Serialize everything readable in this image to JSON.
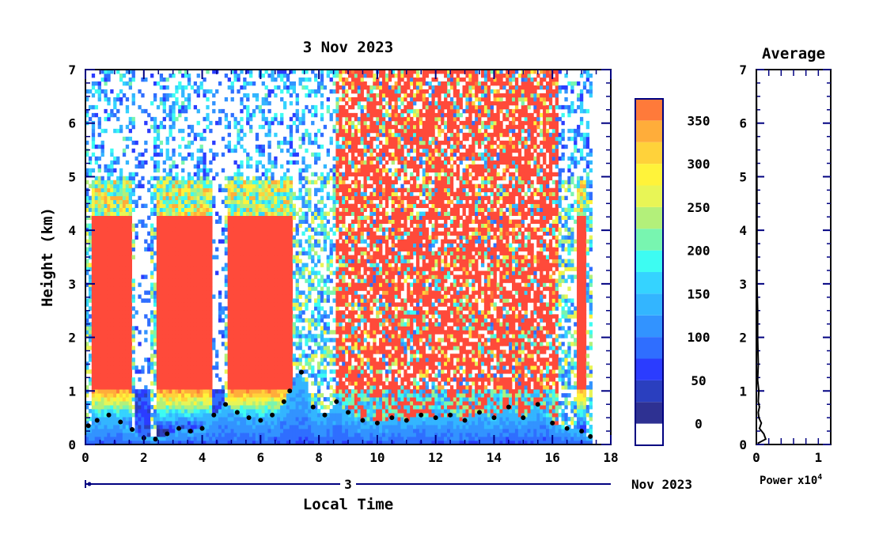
{
  "chart_data": [
    {
      "type": "heatmap",
      "title": "3 Nov 2023",
      "xlabel": "Local Time",
      "ylabel": "Height (km)",
      "xlim": [
        0,
        18
      ],
      "ylim": [
        0,
        7
      ],
      "xticks": [
        "0",
        "2",
        "4",
        "6",
        "8",
        "10",
        "12",
        "14",
        "16",
        "18"
      ],
      "yticks": [
        "0",
        "1",
        "2",
        "3",
        "4",
        "5",
        "6",
        "7"
      ],
      "date_axis": {
        "day": "3",
        "month_year": "Nov 2023"
      },
      "data_extent_hours": [
        0,
        17.35
      ],
      "mixed_layer_height_km": {
        "x": [
          0.1,
          0.4,
          0.8,
          1.2,
          1.6,
          2.0,
          2.4,
          2.8,
          3.2,
          3.6,
          4.0,
          4.4,
          4.8,
          5.2,
          5.6,
          6.0,
          6.4,
          6.8,
          7.0,
          7.4,
          7.8,
          8.2,
          8.6,
          9.0,
          9.5,
          10.0,
          10.5,
          11.0,
          11.5,
          12.0,
          12.5,
          13.0,
          13.5,
          14.0,
          14.5,
          15.0,
          15.5,
          16.0,
          16.5,
          17.0,
          17.3
        ],
        "y": [
          0.35,
          0.45,
          0.55,
          0.42,
          0.28,
          0.12,
          0.1,
          0.2,
          0.3,
          0.25,
          0.3,
          0.55,
          0.75,
          0.6,
          0.5,
          0.45,
          0.55,
          0.8,
          1.0,
          1.35,
          0.7,
          0.55,
          0.8,
          0.6,
          0.45,
          0.4,
          0.5,
          0.45,
          0.55,
          0.5,
          0.55,
          0.45,
          0.6,
          0.5,
          0.7,
          0.5,
          0.75,
          0.4,
          0.3,
          0.25,
          0.15
        ]
      }
    },
    {
      "type": "colorbar",
      "ticks": [
        "0",
        "50",
        "100",
        "150",
        "200",
        "250",
        "300",
        "350"
      ],
      "range": [
        -25,
        375
      ],
      "bins": [
        {
          "lo": -25,
          "hi": 0,
          "color": "#ffffff"
        },
        {
          "lo": 0,
          "hi": 25,
          "color": "#2e3192"
        },
        {
          "lo": 25,
          "hi": 50,
          "color": "#2a3fbf"
        },
        {
          "lo": 50,
          "hi": 75,
          "color": "#2b3cff"
        },
        {
          "lo": 75,
          "hi": 100,
          "color": "#2f6eff"
        },
        {
          "lo": 100,
          "hi": 125,
          "color": "#3293ff"
        },
        {
          "lo": 125,
          "hi": 150,
          "color": "#33b5ff"
        },
        {
          "lo": 150,
          "hi": 175,
          "color": "#35d3ff"
        },
        {
          "lo": 175,
          "hi": 200,
          "color": "#3dfcf2"
        },
        {
          "lo": 200,
          "hi": 225,
          "color": "#78f5b0"
        },
        {
          "lo": 225,
          "hi": 250,
          "color": "#b3f07a"
        },
        {
          "lo": 250,
          "hi": 275,
          "color": "#e8f556"
        },
        {
          "lo": 275,
          "hi": 300,
          "color": "#fff33a"
        },
        {
          "lo": 300,
          "hi": 325,
          "color": "#ffd23a"
        },
        {
          "lo": 325,
          "hi": 350,
          "color": "#ffad3a"
        },
        {
          "lo": 350,
          "hi": 375,
          "color": "#ff7a3a"
        },
        {
          "lo": 375,
          "hi": 400,
          "color": "#ff4a3a"
        }
      ]
    },
    {
      "type": "line",
      "title": "Average",
      "xlabel": "Power",
      "xscale_label": "x10",
      "xscale_exp": "4",
      "xlim": [
        0,
        1.2
      ],
      "ylim": [
        0,
        7
      ],
      "xticks": [
        "0",
        "1"
      ],
      "yticks": [
        "0",
        "1",
        "2",
        "3",
        "4",
        "5",
        "6",
        "7"
      ],
      "series": [
        {
          "x": [
            0.02,
            0.15,
            0.12,
            0.05,
            0.08,
            0.04,
            0.03,
            0.05,
            0.03,
            0.04,
            0.02,
            0.03,
            0.02,
            0.02,
            0.01,
            0.01,
            0.01,
            0.0
          ],
          "y": [
            0.02,
            0.1,
            0.2,
            0.3,
            0.4,
            0.5,
            0.6,
            0.7,
            0.8,
            1.0,
            1.2,
            1.5,
            2.0,
            2.5,
            3.0,
            3.5,
            4.5,
            7.0
          ]
        }
      ]
    }
  ],
  "colors": {
    "axis": "#000000",
    "tick": "#000080",
    "heat_red": "#ff4a3a"
  }
}
